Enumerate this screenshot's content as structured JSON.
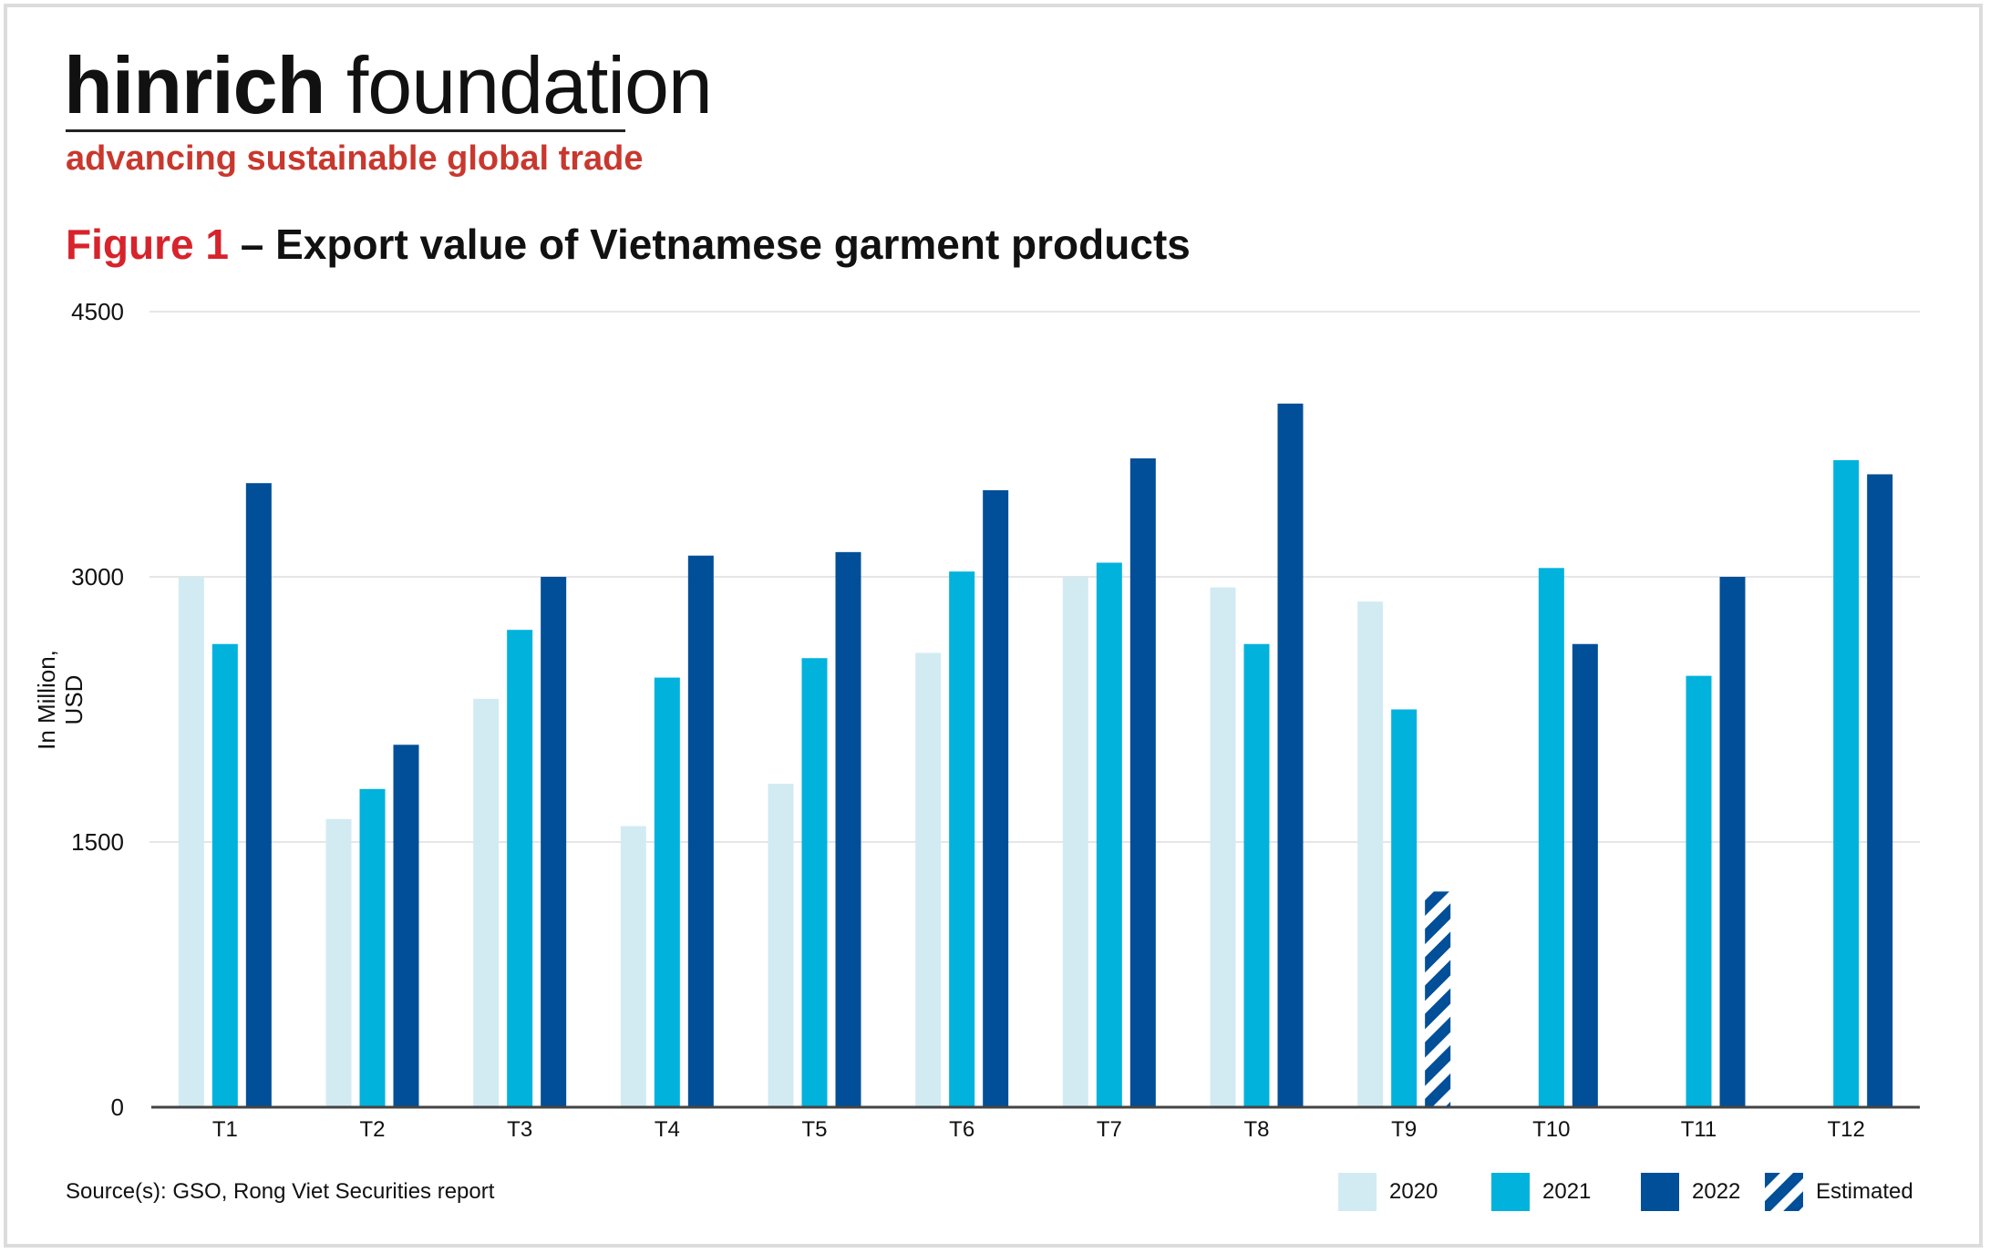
{
  "brand": {
    "name_bold": "hinrich",
    "name_light": "foundation",
    "tagline": "advancing sustainable global trade"
  },
  "figure": {
    "label": "Figure 1",
    "title": "– Export value of Vietnamese garment products"
  },
  "source": "Source(s): GSO, Rong Viet Securities report",
  "colors": {
    "2020": "#d2ebf2",
    "2021": "#00b2dc",
    "2022": "#004f98",
    "estimated": "#004f98",
    "title_accent": "#d7232b",
    "tagline": "#c8382e",
    "grid": "#e6e6e6"
  },
  "legend": {
    "items": [
      {
        "key": "2020",
        "label": "2020"
      },
      {
        "key": "2021",
        "label": "2021"
      },
      {
        "key": "2022",
        "label": "2022"
      },
      {
        "key": "estimated",
        "label": "Estimated"
      }
    ]
  },
  "chart_data": {
    "type": "bar",
    "title": "Export value of Vietnamese garment products",
    "xlabel": "",
    "ylabel": "In Million, USD",
    "ylim": [
      0,
      4500
    ],
    "yticks": [
      0,
      1500,
      3000,
      4500
    ],
    "grid": true,
    "legend_position": "bottom-right",
    "categories": [
      "T1",
      "T2",
      "T3",
      "T4",
      "T5",
      "T6",
      "T7",
      "T8",
      "T9",
      "T10",
      "T11",
      "T12"
    ],
    "series": [
      {
        "name": "2020",
        "values": [
          3000,
          1630,
          2310,
          1590,
          1830,
          2570,
          3000,
          2940,
          2860,
          null,
          null,
          null
        ]
      },
      {
        "name": "2021",
        "values": [
          2620,
          1800,
          2700,
          2430,
          2540,
          3030,
          3080,
          2620,
          2250,
          3050,
          2440,
          3660
        ]
      },
      {
        "name": "2022",
        "values": [
          3530,
          2050,
          3000,
          3120,
          3140,
          3490,
          3670,
          3980,
          1220,
          2620,
          3000,
          3580
        ]
      }
    ],
    "estimated": [
      {
        "series": "2022",
        "category": "T9",
        "value": 1220
      }
    ]
  }
}
